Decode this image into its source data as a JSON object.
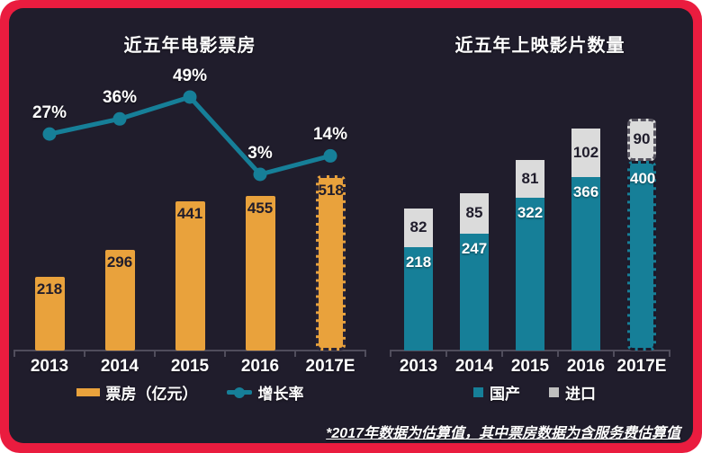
{
  "footnote": "*2017年数据为估算值，其中票房数据为含服务费估算值",
  "colors": {
    "frame_red": "#EA1C3F",
    "background": "#201D2C",
    "bar_orange": "#E9A23C",
    "teal": "#167F98",
    "import_gray": "#DBDBDB",
    "axis_gray": "#504D5C",
    "dark_label": "#201D2C",
    "light_label": "#FFFFFF"
  },
  "chart_data": [
    {
      "id": "box-office",
      "type": "bar",
      "title": "近五年电影票房",
      "categories": [
        "2013",
        "2014",
        "2015",
        "2016",
        "2017E"
      ],
      "estimated_category": "2017E",
      "legend_position": "bottom",
      "series": [
        {
          "name": "票房（亿元）",
          "type": "bar",
          "color": "#E9A23C",
          "values": [
            218,
            296,
            441,
            455,
            518
          ]
        },
        {
          "name": "增长率",
          "type": "line",
          "color": "#167F98",
          "values": [
            27,
            36,
            49,
            3,
            14
          ],
          "labels": [
            "27%",
            "36%",
            "49%",
            "3%",
            "14%"
          ]
        }
      ]
    },
    {
      "id": "film-count",
      "type": "stacked-bar",
      "title": "近五年上映影片数量",
      "categories": [
        "2013",
        "2014",
        "2015",
        "2016",
        "2017E"
      ],
      "estimated_category": "2017E",
      "legend_position": "bottom",
      "series": [
        {
          "name": "国产",
          "color": "#167F98",
          "values": [
            218,
            247,
            322,
            366,
            400
          ]
        },
        {
          "name": "进口",
          "color": "#DBDBDB",
          "values": [
            82,
            85,
            81,
            102,
            90
          ]
        }
      ]
    }
  ]
}
